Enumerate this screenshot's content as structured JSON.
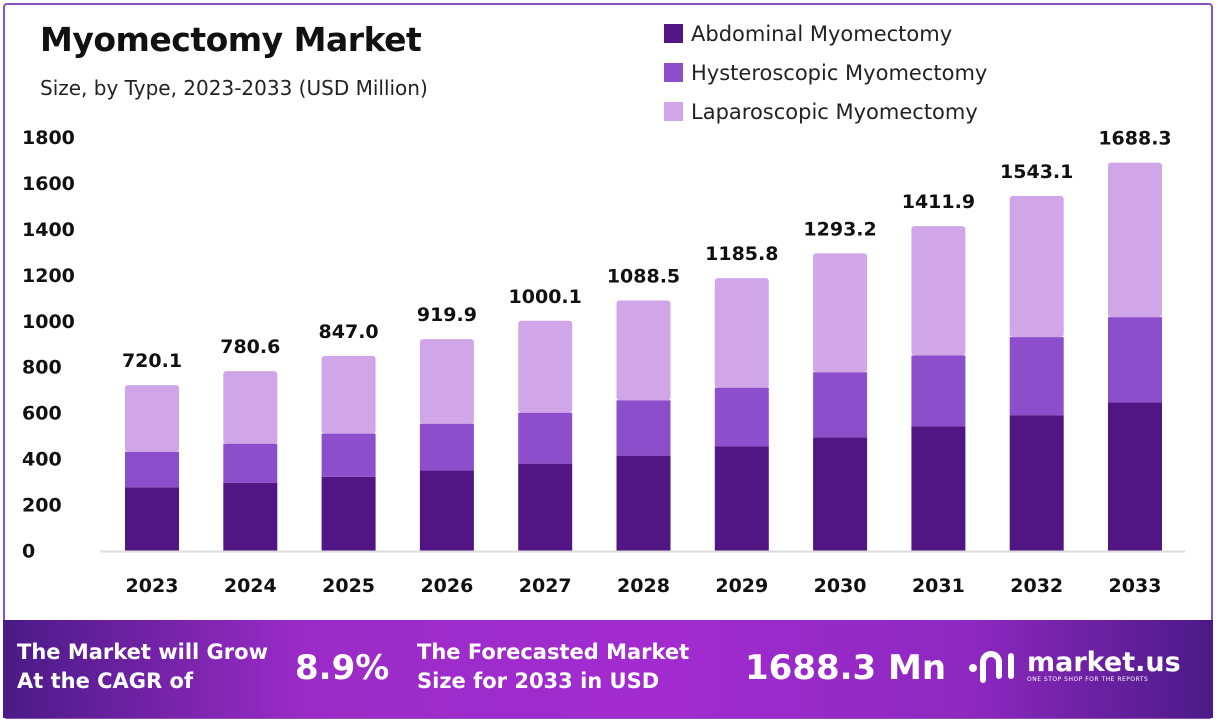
{
  "chart_data": {
    "type": "bar",
    "stacked": true,
    "title": "Myomectomy Market",
    "subtitle": "Size, by Type, 2023-2033 (USD Million)",
    "categories": [
      "2023",
      "2024",
      "2025",
      "2026",
      "2027",
      "2028",
      "2029",
      "2030",
      "2031",
      "2032",
      "2033"
    ],
    "series": [
      {
        "name": "Abdominal Myomectomy",
        "color": "#521684",
        "values": [
          275,
          295,
          321,
          348,
          378,
          413,
          453,
          493,
          541,
          589,
          644
        ]
      },
      {
        "name": "Hysteroscopic Myomectomy",
        "color": "#8c4ecb",
        "values": [
          155,
          170,
          188,
          204,
          222,
          241,
          256,
          283,
          308,
          340,
          372
        ]
      },
      {
        "name": "Laparoscopic Myomectomy",
        "color": "#d1a6e8",
        "values": [
          290.1,
          315.6,
          338.0,
          367.9,
          400.1,
          434.5,
          476.8,
          517.2,
          562.9,
          614.1,
          672.3
        ]
      }
    ],
    "totals": [
      "720.1",
      "780.6",
      "847.0",
      "919.9",
      "1000.1",
      "1088.5",
      "1185.8",
      "1293.2",
      "1411.9",
      "1543.1",
      "1688.3"
    ],
    "yticks": [
      "0",
      "200",
      "400",
      "600",
      "800",
      "1000",
      "1200",
      "1400",
      "1600",
      "1800"
    ],
    "ylim": [
      0,
      1800
    ],
    "grid": false,
    "legend": "top-right"
  },
  "footer": {
    "cagr_line1": "The Market will Grow",
    "cagr_line2": "At the CAGR of",
    "cagr_value": "8.9%",
    "forecast_line1": "The Forecasted Market",
    "forecast_line2": "Size for 2033 in USD",
    "forecast_value": "1688.3 Mn",
    "brand": "market.us",
    "tagline": "ONE STOP SHOP FOR THE REPORTS"
  }
}
